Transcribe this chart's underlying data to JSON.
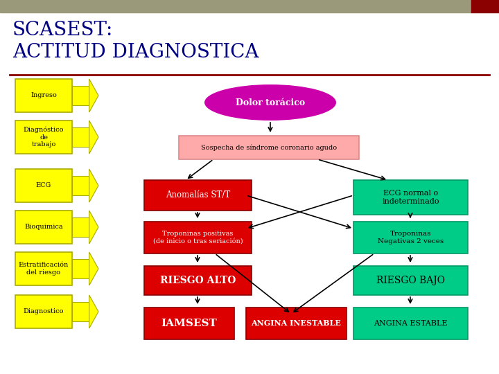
{
  "title_line1": "SCASEST:",
  "title_line2": "ACTITUD DIAGNOSTICA",
  "bg_color": "#ffffff",
  "header_bar_color": "#9a9a7a",
  "header_bar_red": "#8b0000",
  "title_color": "#000080",
  "separator_color": "#8b0000",
  "left_labels": [
    "Ingreso",
    "Diagnóstico\nde\ntrabajo",
    "ECG",
    "Bioquimica",
    "Estratificación\ndel riesgo",
    "Diagnostico"
  ],
  "yellow_box_color": "#ffff00",
  "yellow_edge_color": "#aaaa00",
  "dolor_toracico": "Dolor torácico",
  "dolor_color": "#cc00aa",
  "sospecha_text": "Sospecha de síndrome coronario agudo",
  "sospecha_color": "#ffaaaa",
  "sospecha_edge": "#dd8888",
  "anomalias_text": "Anomalías ST/T",
  "anomalias_color": "#dd0000",
  "red_edge": "#880000",
  "troponinas_pos_text": "Troponinas positivas\n(de inicio o tras seriación)",
  "troponinas_pos_color": "#dd0000",
  "riesgo_alto_text": "RIESGO ALTO",
  "riesgo_alto_color": "#dd0000",
  "iamsest_text": "IAMSEST",
  "iamsest_color": "#dd0000",
  "ecg_normal_text": "ECG normal o\nindeterminado",
  "ecg_normal_color": "#00cc88",
  "green_edge": "#009966",
  "troponinas_neg_text": "Troponinas\nNegativas 2 veces",
  "troponinas_neg_color": "#00cc88",
  "riesgo_bajo_text": "RIESGO BAJO",
  "riesgo_bajo_color": "#00cc88",
  "angina_inestable_text": "ANGINA INESTABLE",
  "angina_inestable_color": "#dd0000",
  "angina_estable_text": "ANGINA ESTABLE",
  "angina_estable_color": "#00cc88"
}
